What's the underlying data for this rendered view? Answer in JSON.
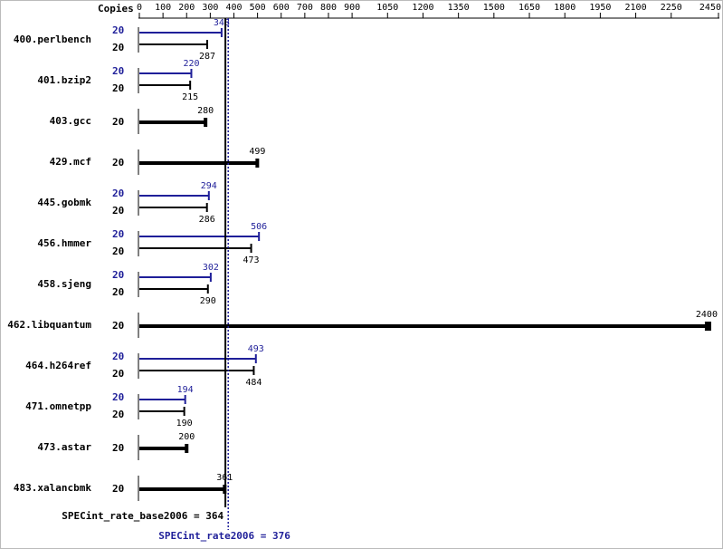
{
  "chart_data": {
    "type": "bar",
    "orientation": "horizontal",
    "x_label": "Copies",
    "xlim": [
      0,
      2450
    ],
    "xticks": [
      0,
      100,
      200,
      300,
      400,
      500,
      600,
      700,
      800,
      900,
      1050,
      1200,
      1350,
      1500,
      1650,
      1800,
      1950,
      2100,
      2250,
      2450
    ],
    "categories": [
      "400.perlbench",
      "401.bzip2",
      "403.gcc",
      "429.mcf",
      "445.gobmk",
      "456.hmmer",
      "458.sjeng",
      "462.libquantum",
      "464.h264ref",
      "471.omnetpp",
      "473.astar",
      "483.xalancbmk"
    ],
    "series": [
      {
        "color": "#1f1f99",
        "copies": [
          20,
          20,
          null,
          null,
          20,
          20,
          20,
          null,
          20,
          20,
          null,
          null
        ],
        "values": [
          348,
          220,
          null,
          null,
          294,
          506,
          302,
          null,
          493,
          194,
          null,
          null
        ]
      },
      {
        "color": "#000000",
        "copies": [
          20,
          20,
          20,
          20,
          20,
          20,
          20,
          20,
          20,
          20,
          20,
          20
        ],
        "values": [
          287,
          215,
          280,
          499,
          286,
          473,
          290,
          2400,
          484,
          190,
          200,
          361
        ]
      }
    ],
    "reference_lines": [
      {
        "label": "SPECint_rate_base2006 = 364",
        "value": 364,
        "color": "#000000",
        "dotted": false
      },
      {
        "label": "SPECint_rate2006 = 376",
        "value": 376,
        "color": "#1f1f99",
        "dotted": true
      }
    ]
  }
}
